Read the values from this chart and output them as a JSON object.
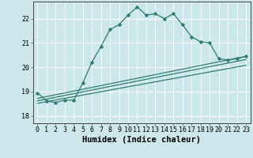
{
  "xlabel": "Humidex (Indice chaleur)",
  "background_color": "#cce8ea",
  "grid_color": "#ffffff",
  "line_color": "#2e7d6e",
  "xlim": [
    -0.5,
    23.5
  ],
  "ylim": [
    17.7,
    22.7
  ],
  "yticks": [
    18,
    19,
    20,
    21,
    22
  ],
  "xticks": [
    0,
    1,
    2,
    3,
    4,
    5,
    6,
    7,
    8,
    9,
    10,
    11,
    12,
    13,
    14,
    15,
    16,
    17,
    18,
    19,
    20,
    21,
    22,
    23
  ],
  "series1_x": [
    0,
    1,
    2,
    3,
    4,
    5,
    6,
    7,
    8,
    9,
    10,
    11,
    12,
    13,
    14,
    15,
    16,
    17,
    18,
    19,
    20,
    21,
    22,
    23
  ],
  "series1_y": [
    18.95,
    18.62,
    18.55,
    18.65,
    18.65,
    19.35,
    20.2,
    20.85,
    21.55,
    21.75,
    22.15,
    22.48,
    22.15,
    22.2,
    22.0,
    22.2,
    21.75,
    21.25,
    21.05,
    21.0,
    20.35,
    20.3,
    20.35,
    20.45
  ],
  "series2_x": [
    0,
    23
  ],
  "series2_y": [
    18.72,
    20.45
  ],
  "series3_x": [
    0,
    23
  ],
  "series3_y": [
    18.62,
    20.32
  ],
  "series4_x": [
    0,
    23
  ],
  "series4_y": [
    18.52,
    20.08
  ],
  "markersize": 2.5,
  "linewidth": 0.9,
  "tick_fontsize": 6.0,
  "xlabel_fontsize": 7.5
}
